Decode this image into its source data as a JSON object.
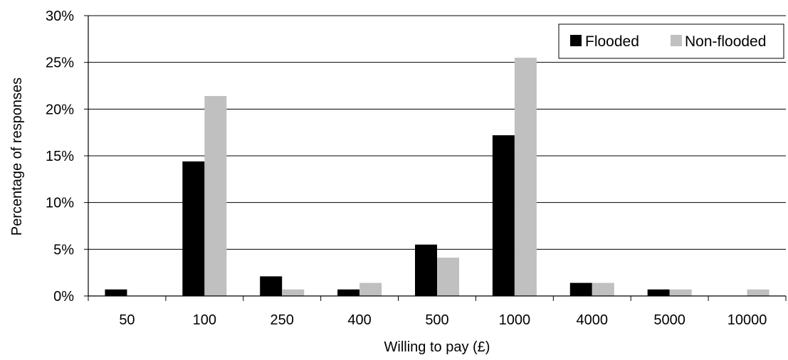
{
  "chart_data": {
    "type": "bar",
    "categories": [
      "50",
      "100",
      "250",
      "400",
      "500",
      "1000",
      "4000",
      "5000",
      "10000"
    ],
    "series": [
      {
        "name": "Flooded",
        "color": "#000000",
        "values": [
          0.7,
          14.4,
          2.1,
          0.7,
          5.5,
          17.2,
          1.4,
          0.7,
          0.0
        ]
      },
      {
        "name": "Non-flooded",
        "color": "#c0c0c0",
        "values": [
          0.0,
          21.4,
          0.7,
          1.4,
          4.1,
          25.5,
          1.4,
          0.7,
          0.7
        ]
      }
    ],
    "xlabel": "Willing to pay (£)",
    "ylabel": "Percentage of responses",
    "ylim": [
      0,
      30
    ],
    "yticks": [
      0,
      5,
      10,
      15,
      20,
      25,
      30
    ],
    "ytick_suffix": "%",
    "grid": true,
    "legend_position": "top-right"
  }
}
